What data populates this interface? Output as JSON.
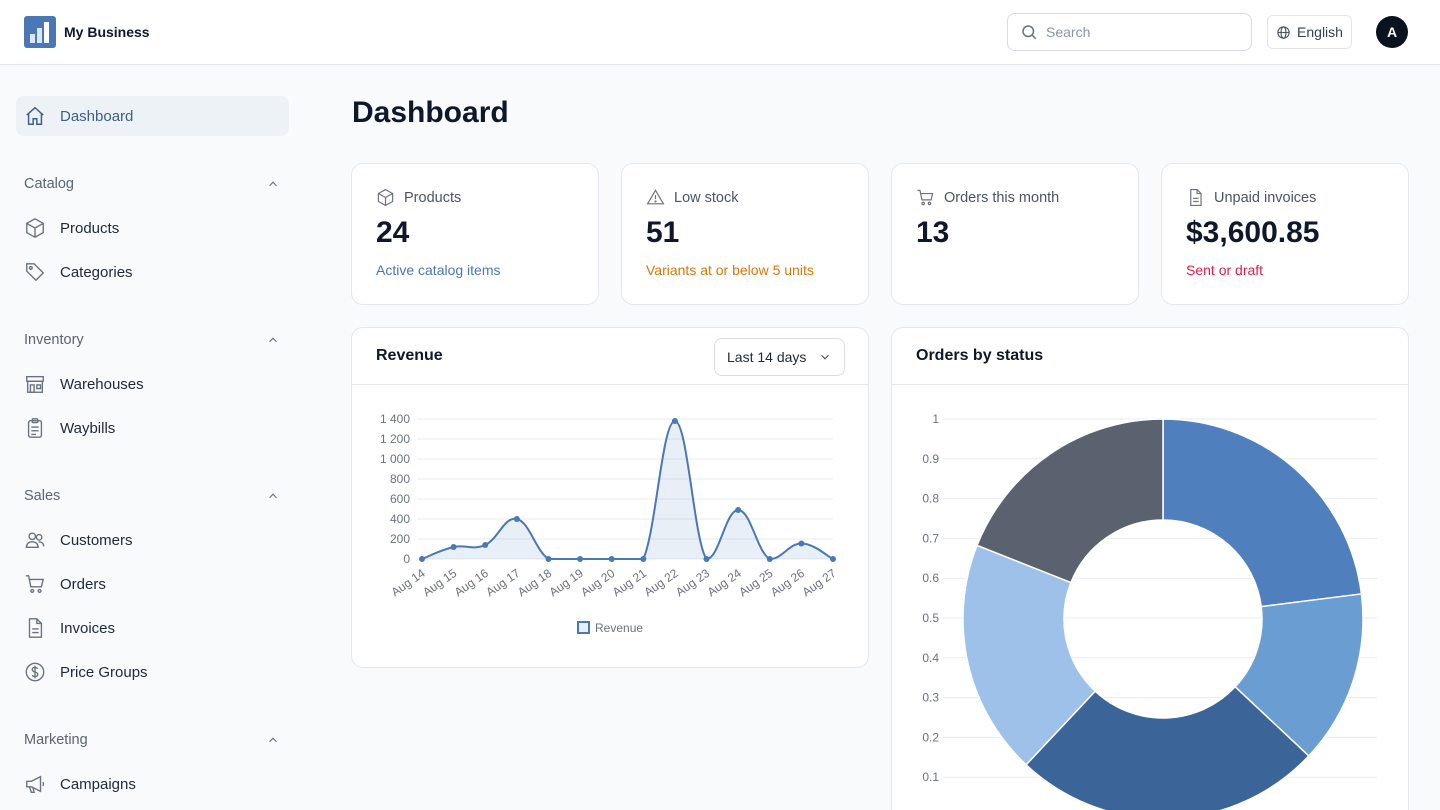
{
  "header": {
    "brand_name": "My Business",
    "search_placeholder": "Search",
    "language": "English",
    "avatar_initial": "A"
  },
  "sidebar": {
    "dashboard": "Dashboard",
    "sections": [
      {
        "title": "Catalog",
        "items": [
          "Products",
          "Categories"
        ]
      },
      {
        "title": "Inventory",
        "items": [
          "Warehouses",
          "Waybills"
        ]
      },
      {
        "title": "Sales",
        "items": [
          "Customers",
          "Orders",
          "Invoices",
          "Price Groups"
        ]
      },
      {
        "title": "Marketing",
        "items": [
          "Campaigns"
        ]
      }
    ]
  },
  "main": {
    "title": "Dashboard",
    "stats": [
      {
        "label": "Products",
        "value": "24",
        "sub": "Active catalog items",
        "sub_color": "#4a78b5",
        "icon": "box-icon"
      },
      {
        "label": "Low stock",
        "value": "51",
        "sub": "Variants at or below 5 units",
        "sub_color": "#d97706",
        "icon": "warning-icon"
      },
      {
        "label": "Orders this month",
        "value": "13",
        "sub": "",
        "sub_color": "#4a78b5",
        "icon": "cart-icon"
      },
      {
        "label": "Unpaid invoices",
        "value": "$3,600.85",
        "sub": "Sent or draft",
        "sub_color": "#e11d48",
        "icon": "document-icon"
      }
    ],
    "revenue_title": "Revenue",
    "range_label": "Last 14 days",
    "orders_title": "Orders by status"
  },
  "colors": {
    "accent": "#4a78b5",
    "donut": [
      "#4f7fbd",
      "#6a9ed3",
      "#3b6598",
      "#9dc1e8",
      "#5a6270"
    ]
  },
  "chart_data": [
    {
      "type": "area",
      "categories": [
        "Aug 14",
        "Aug 15",
        "Aug 16",
        "Aug 17",
        "Aug 18",
        "Aug 19",
        "Aug 20",
        "Aug 21",
        "Aug 22",
        "Aug 23",
        "Aug 24",
        "Aug 25",
        "Aug 26",
        "Aug 27"
      ],
      "series": [
        {
          "name": "Revenue",
          "values": [
            0,
            120,
            140,
            400,
            0,
            0,
            0,
            0,
            1380,
            0,
            490,
            0,
            155,
            0
          ]
        }
      ],
      "ylim": [
        0,
        1400
      ],
      "yticks": [
        "0",
        "200",
        "400",
        "600",
        "800",
        "1 000",
        "1 200",
        "1 400"
      ],
      "grid": true,
      "legend": "bottom",
      "color": "#4a78b5"
    },
    {
      "type": "pie",
      "donut": true,
      "slices": [
        0.23,
        0.14,
        0.25,
        0.19,
        0.19
      ],
      "yticks": [
        "0.1",
        "0.2",
        "0.3",
        "0.4",
        "0.5",
        "0.6",
        "0.7",
        "0.8",
        "0.9",
        "1"
      ],
      "grid": true
    }
  ]
}
